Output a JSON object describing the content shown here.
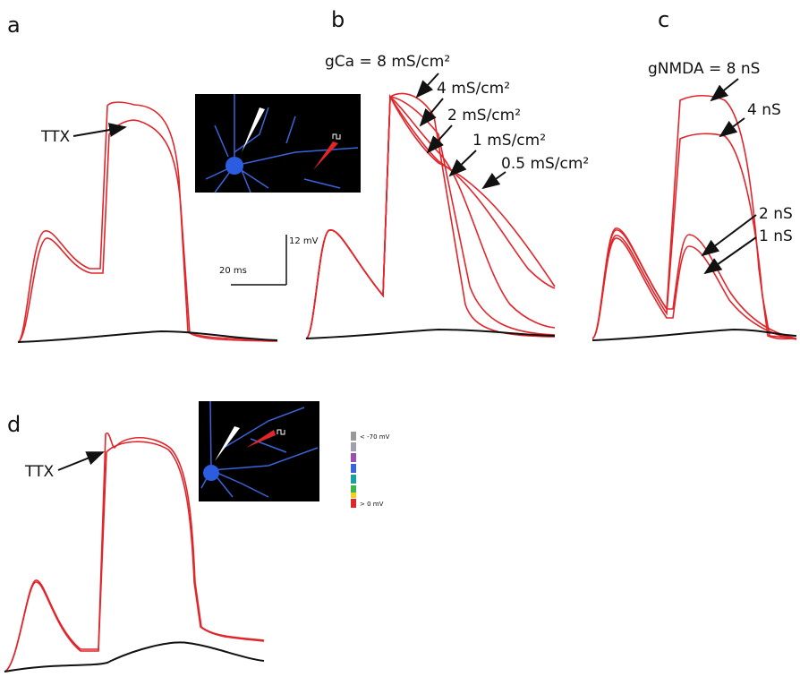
{
  "panels": [
    {
      "label": "a",
      "annotations": [
        "TTX"
      ]
    },
    {
      "label": "b",
      "annotations": [
        "gCa = 8 mS/cm²",
        "4 mS/cm²",
        "2 mS/cm²",
        "1 mS/cm²",
        "0.5 mS/cm²"
      ]
    },
    {
      "label": "c",
      "annotations": [
        "gNMDA = 8 nS",
        "4 nS",
        "2 nS",
        "1 nS"
      ]
    },
    {
      "label": "d",
      "annotations": [
        "TTX"
      ]
    }
  ],
  "scale_bar": {
    "voltage": "12 mV",
    "time": "20 ms"
  },
  "color_legend": {
    "min": "< -70 mV",
    "max": "> 0 mV"
  }
}
